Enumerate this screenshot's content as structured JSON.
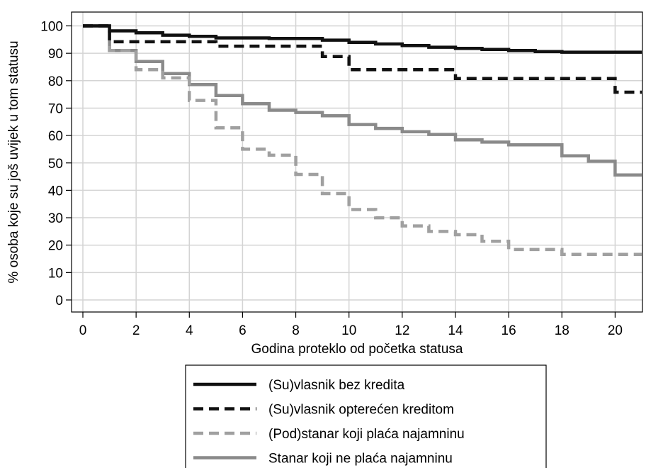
{
  "chart_data": {
    "type": "line",
    "xlabel": "Godina proteklo od početka statusa",
    "ylabel": "% osoba koje su još uvijek u tom statusu",
    "xlim": [
      0,
      21
    ],
    "ylim": [
      0,
      100
    ],
    "xticks": [
      0,
      2,
      4,
      6,
      8,
      10,
      12,
      14,
      16,
      18,
      20
    ],
    "yticks": [
      0,
      10,
      20,
      30,
      40,
      50,
      60,
      70,
      80,
      90,
      100
    ],
    "grid": true,
    "legend_position": "bottom",
    "series": [
      {
        "name": "(Su)vlasnik bez kredita",
        "color": "#111111",
        "dash": "solid",
        "x": [
          0,
          1,
          1,
          2,
          2,
          3,
          3,
          4,
          4,
          5,
          5,
          7,
          7,
          9,
          9,
          10,
          10,
          11,
          11,
          12,
          12,
          13,
          13,
          14,
          14,
          15,
          15,
          16,
          16,
          17,
          17,
          18,
          18,
          21
        ],
        "y": [
          100,
          100,
          98.2,
          98.2,
          97.5,
          97.5,
          96.6,
          96.6,
          96.2,
          96.2,
          95.6,
          95.6,
          95.4,
          95.4,
          94.8,
          94.8,
          94.0,
          94.0,
          93.4,
          93.4,
          92.8,
          92.8,
          92.2,
          92.2,
          91.8,
          91.8,
          91.4,
          91.4,
          91.0,
          91.0,
          90.6,
          90.6,
          90.4,
          90.4
        ]
      },
      {
        "name": "(Su)vlasnik opterećen kreditom",
        "color": "#111111",
        "dash": "dashed",
        "x": [
          0,
          1,
          1,
          5,
          5,
          9,
          9,
          10,
          10,
          14,
          14,
          20,
          20,
          21
        ],
        "y": [
          100,
          100,
          94.2,
          94.2,
          92.6,
          92.6,
          88.8,
          88.8,
          84.0,
          84.0,
          80.8,
          80.8,
          75.8,
          75.8
        ]
      },
      {
        "name": "(Pod)stanar koji plaća najamninu",
        "color": "#a0a0a0",
        "dash": "dashed",
        "x": [
          0,
          1,
          1,
          2,
          2,
          3,
          3,
          4,
          4,
          5,
          5,
          6,
          6,
          7,
          7,
          8,
          8,
          9,
          9,
          10,
          10,
          11,
          11,
          12,
          12,
          13,
          13,
          14,
          14,
          15,
          15,
          16,
          16,
          18,
          18,
          21
        ],
        "y": [
          100,
          100,
          91.0,
          91.0,
          84.0,
          84.0,
          81.0,
          81.0,
          72.8,
          72.8,
          62.8,
          62.8,
          55.0,
          55.0,
          52.8,
          52.8,
          45.8,
          45.8,
          38.8,
          38.8,
          33.0,
          33.0,
          30.0,
          30.0,
          27.0,
          27.0,
          25.0,
          25.0,
          23.8,
          23.8,
          21.4,
          21.4,
          18.4,
          18.4,
          16.6,
          16.6
        ]
      },
      {
        "name": "Stanar koji ne plaća najamninu",
        "color": "#8a8a8a",
        "dash": "solid",
        "x": [
          0,
          1,
          1,
          2,
          2,
          3,
          3,
          4,
          4,
          5,
          5,
          6,
          6,
          7,
          7,
          8,
          8,
          9,
          9,
          10,
          10,
          11,
          11,
          12,
          12,
          13,
          13,
          14,
          14,
          15,
          15,
          16,
          16,
          18,
          18,
          19,
          19,
          20,
          20,
          21
        ],
        "y": [
          100,
          100,
          91.0,
          91.0,
          87.0,
          87.0,
          82.6,
          82.6,
          78.6,
          78.6,
          74.6,
          74.6,
          71.6,
          71.6,
          69.2,
          69.2,
          68.4,
          68.4,
          67.2,
          67.2,
          64.0,
          64.0,
          62.6,
          62.6,
          61.4,
          61.4,
          60.4,
          60.4,
          58.4,
          58.4,
          57.6,
          57.6,
          56.6,
          56.6,
          52.6,
          52.6,
          50.6,
          50.6,
          45.6,
          45.6
        ]
      }
    ]
  }
}
